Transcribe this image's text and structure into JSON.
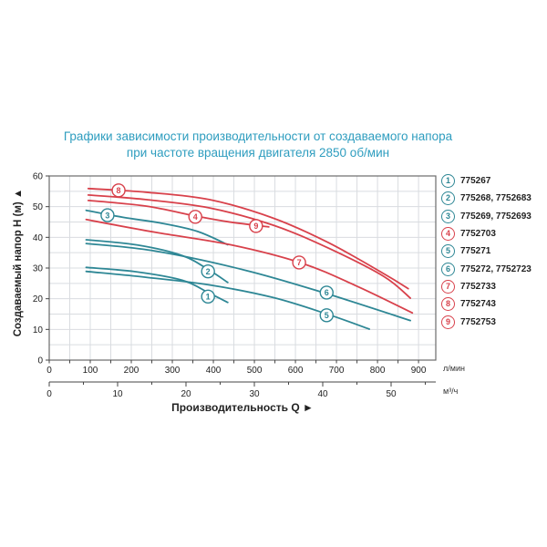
{
  "title": {
    "line1": "Графики зависимости производительности от создаваемого напора",
    "line2": "при частоте вращения двигателя 2850 об/мин",
    "color": "#2e9dbf"
  },
  "colors": {
    "teal": "#2e8795",
    "red": "#d8414b",
    "grid": "#d9dce0",
    "border": "#6b6b6b",
    "tick_text": "#222222"
  },
  "legend": [
    {
      "num": "1",
      "color": "teal",
      "label": "775267"
    },
    {
      "num": "2",
      "color": "teal",
      "label": "775268, 7752683"
    },
    {
      "num": "3",
      "color": "teal",
      "label": "775269, 7752693"
    },
    {
      "num": "4",
      "color": "red",
      "label": "7752703"
    },
    {
      "num": "5",
      "color": "teal",
      "label": "775271"
    },
    {
      "num": "6",
      "color": "teal",
      "label": "775272, 7752723"
    },
    {
      "num": "7",
      "color": "red",
      "label": "7752733"
    },
    {
      "num": "8",
      "color": "red",
      "label": "7752743"
    },
    {
      "num": "9",
      "color": "red",
      "label": "7752753"
    }
  ],
  "chart_data": {
    "type": "line",
    "title": "Графики зависимости производительности от создаваемого напора при частоте вращения двигателя 2850 об/мин",
    "xlabel": "Производительность Q",
    "xlabel_arrow": "►",
    "ylabel": "Создаваемый напор H (м)",
    "ylabel_arrow": "▲",
    "x_units_primary": "л/мин",
    "x_units_secondary": "м³/ч",
    "xlim_lmin": [
      0,
      950
    ],
    "xlim_m3h": [
      0,
      57
    ],
    "ylim": [
      0,
      60
    ],
    "x_ticks_lmin": [
      0,
      100,
      200,
      300,
      400,
      500,
      600,
      700,
      800,
      900
    ],
    "x_ticks_m3h": [
      0,
      10,
      20,
      30,
      40,
      50
    ],
    "y_ticks": [
      0,
      10,
      20,
      30,
      40,
      50,
      60
    ],
    "grid": "on",
    "legend_position": "right",
    "series": [
      {
        "id": "1",
        "model": "775267",
        "color": "teal",
        "label_at": [
          387,
          20.7
        ],
        "points": [
          [
            90,
            30.2
          ],
          [
            210,
            28.8
          ],
          [
            325,
            26.0
          ],
          [
            390,
            21.8
          ],
          [
            435,
            18.8
          ]
        ]
      },
      {
        "id": "2",
        "model": "775268, 7752683",
        "color": "teal",
        "label_at": [
          387,
          28.9
        ],
        "points": [
          [
            90,
            39.2
          ],
          [
            215,
            37.5
          ],
          [
            325,
            34.0
          ],
          [
            390,
            29.3
          ],
          [
            435,
            25.3
          ]
        ]
      },
      {
        "id": "3",
        "model": "775269, 7752693",
        "color": "teal",
        "label_at": [
          142,
          47.2
        ],
        "points": [
          [
            90,
            48.8
          ],
          [
            180,
            46.5
          ],
          [
            270,
            44.7
          ],
          [
            360,
            42.0
          ],
          [
            435,
            37.6
          ]
        ]
      },
      {
        "id": "4",
        "model": "7752703",
        "color": "red",
        "label_at": [
          356,
          46.7
        ],
        "points": [
          [
            95,
            52.0
          ],
          [
            235,
            50.2
          ],
          [
            355,
            47.0
          ],
          [
            435,
            45.1
          ],
          [
            535,
            43.4
          ]
        ]
      },
      {
        "id": "5",
        "model": "775271",
        "color": "teal",
        "label_at": [
          676,
          14.6
        ],
        "points": [
          [
            90,
            28.9
          ],
          [
            235,
            27.0
          ],
          [
            390,
            24.5
          ],
          [
            545,
            20.4
          ],
          [
            675,
            15.1
          ],
          [
            780,
            10.1
          ]
        ]
      },
      {
        "id": "6",
        "model": "775272, 7752723",
        "color": "teal",
        "label_at": [
          676,
          22.0
        ],
        "points": [
          [
            90,
            38.0
          ],
          [
            260,
            35.5
          ],
          [
            480,
            29.2
          ],
          [
            675,
            21.7
          ],
          [
            880,
            12.9
          ]
        ]
      },
      {
        "id": "7",
        "model": "7752733",
        "color": "red",
        "label_at": [
          609,
          31.8
        ],
        "points": [
          [
            90,
            45.8
          ],
          [
            260,
            41.6
          ],
          [
            445,
            37.5
          ],
          [
            615,
            31.6
          ],
          [
            745,
            24.4
          ],
          [
            885,
            15.4
          ]
        ]
      },
      {
        "id": "8",
        "model": "7752743",
        "color": "red",
        "label_at": [
          169,
          55.3
        ],
        "points": [
          [
            95,
            55.9
          ],
          [
            235,
            54.7
          ],
          [
            390,
            52.3
          ],
          [
            545,
            46.3
          ],
          [
            680,
            38.3
          ],
          [
            815,
            28.2
          ],
          [
            875,
            23.3
          ]
        ]
      },
      {
        "id": "9",
        "model": "7752753",
        "color": "red",
        "label_at": [
          504,
          43.7
        ],
        "points": [
          [
            95,
            53.8
          ],
          [
            235,
            52.3
          ],
          [
            390,
            49.6
          ],
          [
            545,
            44.0
          ],
          [
            680,
            36.5
          ],
          [
            815,
            27.3
          ],
          [
            880,
            20.2
          ]
        ]
      }
    ]
  }
}
